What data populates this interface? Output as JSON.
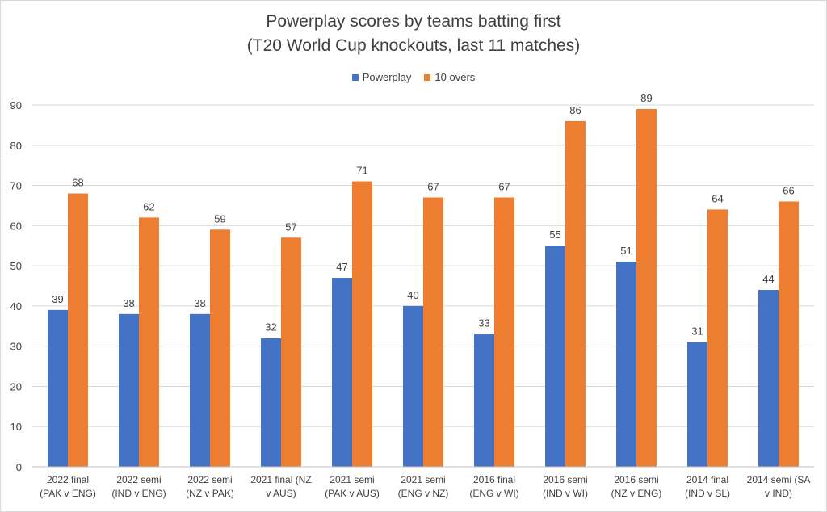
{
  "chart_data": {
    "type": "bar",
    "title": "Powerplay scores by teams batting first",
    "subtitle": "(T20 World Cup knockouts, last 11 matches)",
    "xlabel": "",
    "ylabel": "",
    "ylim": [
      0,
      90
    ],
    "yticks": [
      0,
      10,
      20,
      30,
      40,
      50,
      60,
      70,
      80,
      90
    ],
    "grid": true,
    "legend_position": "top",
    "categories": [
      [
        "2022 final",
        "(PAK v ENG)"
      ],
      [
        "2022 semi",
        "(IND v ENG)"
      ],
      [
        "2022 semi",
        "(NZ v PAK)"
      ],
      [
        "2021 final (NZ",
        "v AUS)"
      ],
      [
        "2021 semi",
        "(PAK v AUS)"
      ],
      [
        "2021 semi",
        "(ENG v NZ)"
      ],
      [
        "2016 final",
        "(ENG v WI)"
      ],
      [
        "2016 semi",
        "(IND v WI)"
      ],
      [
        "2016 semi",
        "(NZ v ENG)"
      ],
      [
        "2014 final",
        "(IND v SL)"
      ],
      [
        "2014 semi (SA",
        "v IND)"
      ]
    ],
    "series": [
      {
        "name": "Powerplay",
        "color": "#4472c4",
        "values": [
          39,
          38,
          38,
          32,
          47,
          40,
          33,
          55,
          51,
          31,
          44
        ]
      },
      {
        "name": "10 overs",
        "color": "#ed7d31",
        "values": [
          68,
          62,
          59,
          57,
          71,
          67,
          67,
          86,
          89,
          64,
          66
        ]
      }
    ]
  }
}
